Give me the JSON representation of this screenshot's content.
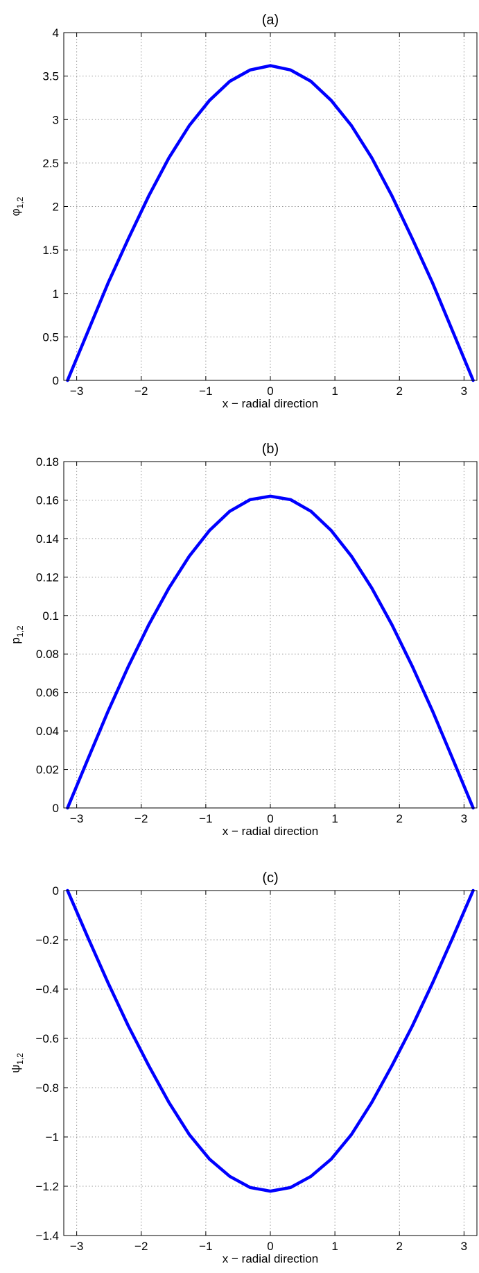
{
  "chart_data": [
    {
      "type": "line",
      "title": "(a)",
      "xlabel": "x − radial direction",
      "ylabel_main": "φ",
      "ylabel_sub": "1,2",
      "xlim": [
        -3.2,
        3.2
      ],
      "ylim": [
        0,
        4
      ],
      "xticks": [
        -3,
        -2,
        -1,
        0,
        1,
        2,
        3
      ],
      "xtick_labels": [
        "−3",
        "−2",
        "−1",
        "0",
        "1",
        "2",
        "3"
      ],
      "yticks": [
        0,
        0.5,
        1,
        1.5,
        2,
        2.5,
        3,
        3.5,
        4
      ],
      "ytick_labels": [
        "0",
        "0.5",
        "1",
        "1.5",
        "2",
        "2.5",
        "3",
        "3.5",
        "4"
      ],
      "grid": true,
      "color": "#0000ff",
      "x": [
        -3.1416,
        -2.8274,
        -2.5133,
        -2.1991,
        -1.885,
        -1.5708,
        -1.2566,
        -0.9425,
        -0.6283,
        -0.3142,
        0,
        0.3142,
        0.6283,
        0.9425,
        1.2566,
        1.5708,
        1.885,
        2.1991,
        2.5133,
        2.8274,
        3.1416
      ],
      "y": [
        0,
        0.56,
        1.12,
        1.63,
        2.12,
        2.56,
        2.93,
        3.22,
        3.44,
        3.57,
        3.62,
        3.57,
        3.44,
        3.22,
        2.93,
        2.56,
        2.12,
        1.63,
        1.12,
        0.56,
        0
      ]
    },
    {
      "type": "line",
      "title": "(b)",
      "xlabel": "x − radial direction",
      "ylabel_main": "p",
      "ylabel_sub": "1,2",
      "xlim": [
        -3.2,
        3.2
      ],
      "ylim": [
        0,
        0.18
      ],
      "xticks": [
        -3,
        -2,
        -1,
        0,
        1,
        2,
        3
      ],
      "xtick_labels": [
        "−3",
        "−2",
        "−1",
        "0",
        "1",
        "2",
        "3"
      ],
      "yticks": [
        0,
        0.02,
        0.04,
        0.06,
        0.08,
        0.1,
        0.12,
        0.14,
        0.16,
        0.18
      ],
      "ytick_labels": [
        "0",
        "0.02",
        "0.04",
        "0.06",
        "0.08",
        "0.1",
        "0.12",
        "0.14",
        "0.16",
        "0.18"
      ],
      "grid": true,
      "color": "#0000ff",
      "x": [
        -3.1416,
        -2.8274,
        -2.5133,
        -2.1991,
        -1.885,
        -1.5708,
        -1.2566,
        -0.9425,
        -0.6283,
        -0.3142,
        0,
        0.3142,
        0.6283,
        0.9425,
        1.2566,
        1.5708,
        1.885,
        2.1991,
        2.5133,
        2.8274,
        3.1416
      ],
      "y": [
        0,
        0.0253,
        0.0503,
        0.0736,
        0.0951,
        0.1143,
        0.1308,
        0.1442,
        0.1542,
        0.1602,
        0.162,
        0.1602,
        0.1542,
        0.1442,
        0.1308,
        0.1143,
        0.0951,
        0.0736,
        0.0503,
        0.0253,
        0
      ]
    },
    {
      "type": "line",
      "title": "(c)",
      "xlabel": "x − radial direction",
      "ylabel_main": "ψ",
      "ylabel_sub": "1,2",
      "xlim": [
        -3.2,
        3.2
      ],
      "ylim": [
        -1.4,
        0
      ],
      "xticks": [
        -3,
        -2,
        -1,
        0,
        1,
        2,
        3
      ],
      "xtick_labels": [
        "−3",
        "−2",
        "−1",
        "0",
        "1",
        "2",
        "3"
      ],
      "yticks": [
        -1.4,
        -1.2,
        -1,
        -0.8,
        -0.6,
        -0.4,
        -0.2,
        0
      ],
      "ytick_labels": [
        "−1.4",
        "−1.2",
        "−1",
        "−0.8",
        "−0.6",
        "−0.4",
        "−0.2",
        "0"
      ],
      "grid": true,
      "color": "#0000ff",
      "x": [
        -3.1416,
        -2.8274,
        -2.5133,
        -2.1991,
        -1.885,
        -1.5708,
        -1.2566,
        -0.9425,
        -0.6283,
        -0.3142,
        0,
        0.3142,
        0.6283,
        0.9425,
        1.2566,
        1.5708,
        1.885,
        2.1991,
        2.5133,
        2.8274,
        3.1416
      ],
      "y": [
        0,
        -0.19,
        -0.375,
        -0.55,
        -0.71,
        -0.86,
        -0.99,
        -1.09,
        -1.16,
        -1.205,
        -1.22,
        -1.205,
        -1.16,
        -1.09,
        -0.99,
        -0.86,
        -0.71,
        -0.55,
        -0.375,
        -0.19,
        0
      ]
    }
  ]
}
